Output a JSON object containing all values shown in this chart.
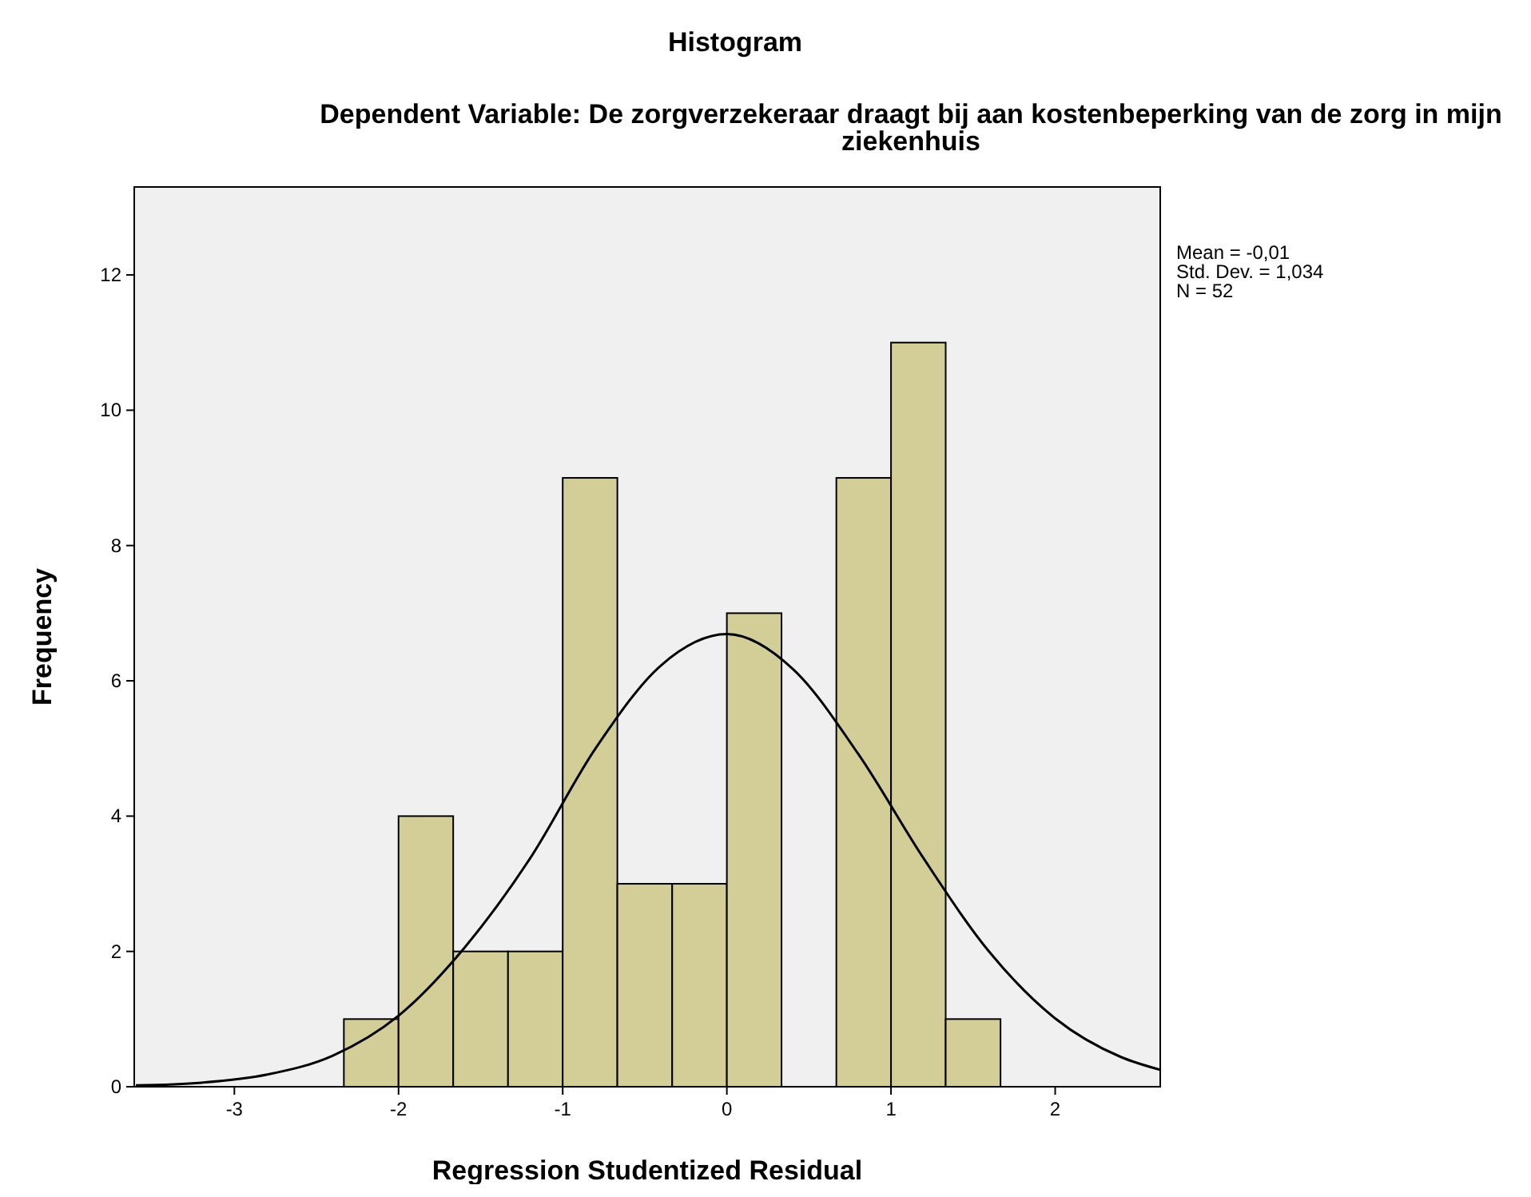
{
  "chart_data": {
    "type": "histogram",
    "title": "Histogram",
    "subtitle": "Dependent Variable: De zorgverzekeraar draagt bij aan kostenbeperking van de zorg in mijn ziekenhuis",
    "xlabel": "Regression Studentized Residual",
    "ylabel": "Frequency",
    "bins": [
      -2.333,
      -2,
      -1.667,
      -1.333,
      -1,
      -0.667,
      -0.333,
      0,
      0.333,
      0.667,
      1,
      1.333,
      1.667
    ],
    "values": [
      1,
      4,
      2,
      2,
      9,
      3,
      3,
      7,
      0,
      9,
      11,
      1
    ],
    "color": "#d3ce97",
    "series": [
      {
        "type": "line",
        "color": "#000000",
        "x": [
          -3.6,
          -3.2,
          -2.8,
          -2.4,
          -2,
          -1.6,
          -1.2,
          -0.8,
          -0.4,
          0,
          0.4,
          0.8,
          1.2,
          1.6,
          2,
          2.4,
          2.64
        ],
        "values": [
          0.02,
          0.06,
          0.18,
          0.46,
          1.05,
          2.05,
          3.37,
          5,
          6.23,
          6.69,
          6.18,
          4.92,
          3.37,
          1.99,
          1.01,
          0.44,
          0.25
        ]
      }
    ],
    "xlim": [
      -3.61,
      2.64
    ],
    "xticks": [
      -3,
      -2,
      -1,
      0,
      1,
      2
    ],
    "ylim": [
      0,
      13.3
    ],
    "yticks": [
      0,
      2,
      4,
      6,
      8,
      10,
      12
    ],
    "grid": false,
    "marker": "none",
    "line_style": "solid",
    "annotations": [
      "Mean = -0,01",
      "Std. Dev. = 1,034",
      "N = 52"
    ]
  }
}
